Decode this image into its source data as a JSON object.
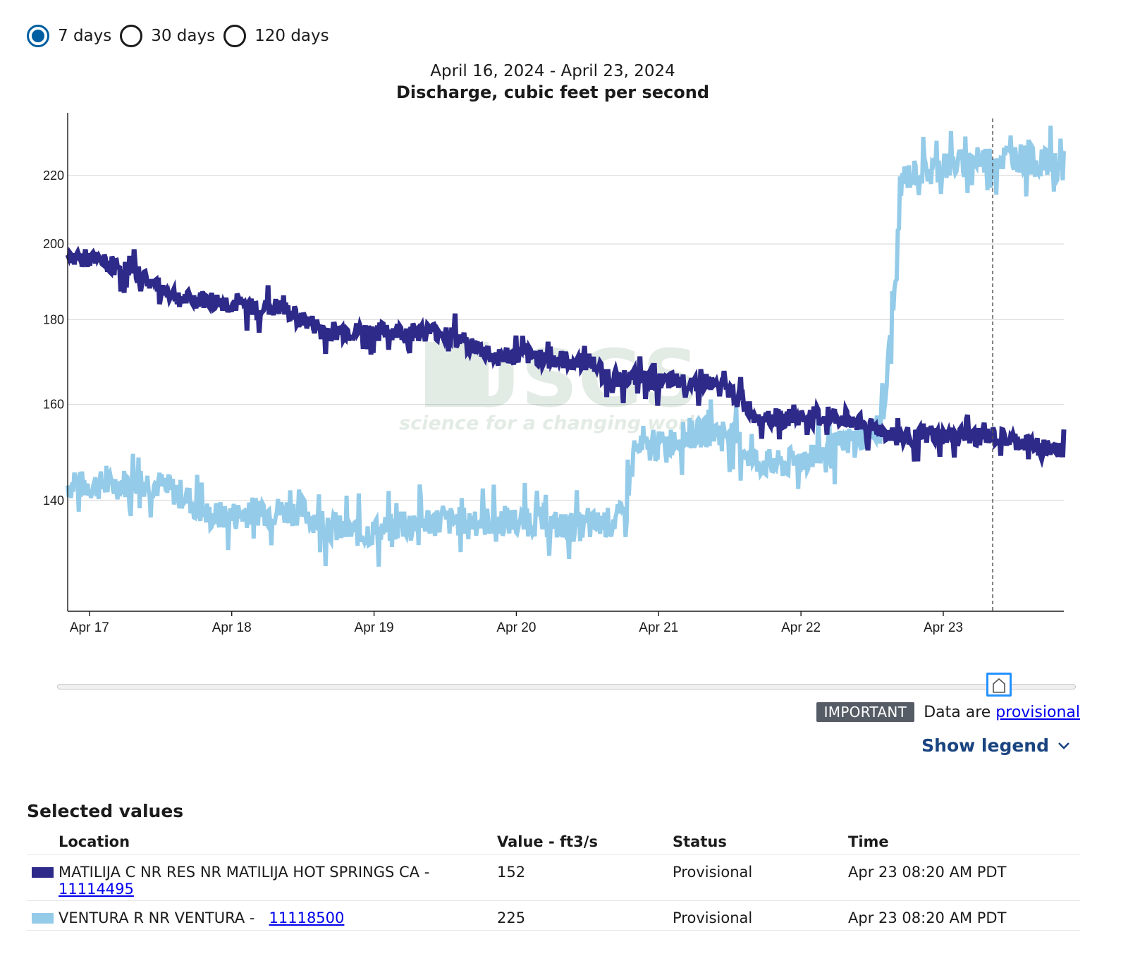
{
  "period_selector": {
    "options": [
      {
        "label": "7 days",
        "checked": true
      },
      {
        "label": "30 days",
        "checked": false
      },
      {
        "label": "120 days",
        "checked": false
      }
    ]
  },
  "watermark": {
    "main": "USGS",
    "tagline": "science for a changing world"
  },
  "chart_data": {
    "type": "line",
    "title": "Discharge, cubic feet per second",
    "subtitle": "April 16, 2024 - April 23, 2024",
    "xlabel": "",
    "ylabel": "",
    "x_range": [
      "2024-04-16T20:20",
      "2024-04-23T20:20"
    ],
    "x_ticks": [
      "Apr 17",
      "Apr 18",
      "Apr 19",
      "Apr 20",
      "Apr 21",
      "Apr 22",
      "Apr 23"
    ],
    "y_ticks": [
      140,
      160,
      180,
      200,
      220
    ],
    "y_scale": "log",
    "ylim": [
      120,
      240
    ],
    "grid": true,
    "cursor_time": "2024-04-23T08:20",
    "colors": {
      "matilija": "#2e2a8a",
      "ventura": "#94cbe9"
    },
    "series": [
      {
        "name": "MATILIJA C NR RES NR MATILIJA HOT SPRINGS CA - 11114495",
        "color": "#2e2a8a",
        "points": [
          [
            "2024-04-16T20:20",
            196
          ],
          [
            "2024-04-17T00:00",
            196
          ],
          [
            "2024-04-17T04:00",
            194
          ],
          [
            "2024-04-17T08:00",
            192
          ],
          [
            "2024-04-17T12:00",
            188
          ],
          [
            "2024-04-17T16:00",
            185
          ],
          [
            "2024-04-17T20:00",
            185
          ],
          [
            "2024-04-18T00:00",
            184
          ],
          [
            "2024-04-18T04:00",
            183
          ],
          [
            "2024-04-18T08:00",
            183
          ],
          [
            "2024-04-18T12:00",
            180
          ],
          [
            "2024-04-18T16:00",
            177
          ],
          [
            "2024-04-18T20:00",
            177
          ],
          [
            "2024-04-19T00:00",
            177
          ],
          [
            "2024-04-19T04:00",
            177
          ],
          [
            "2024-04-19T08:00",
            177
          ],
          [
            "2024-04-19T12:00",
            177
          ],
          [
            "2024-04-19T16:00",
            174
          ],
          [
            "2024-04-19T20:00",
            171
          ],
          [
            "2024-04-20T00:00",
            171
          ],
          [
            "2024-04-20T04:00",
            171
          ],
          [
            "2024-04-20T08:00",
            170
          ],
          [
            "2024-04-20T12:00",
            170
          ],
          [
            "2024-04-20T16:00",
            166
          ],
          [
            "2024-04-20T20:00",
            166
          ],
          [
            "2024-04-21T00:00",
            165
          ],
          [
            "2024-04-21T04:00",
            165
          ],
          [
            "2024-04-21T08:00",
            165
          ],
          [
            "2024-04-21T12:00",
            163
          ],
          [
            "2024-04-21T16:00",
            158
          ],
          [
            "2024-04-21T20:00",
            157
          ],
          [
            "2024-04-22T00:00",
            157
          ],
          [
            "2024-04-22T04:00",
            157
          ],
          [
            "2024-04-22T08:00",
            157
          ],
          [
            "2024-04-22T12:00",
            155
          ],
          [
            "2024-04-22T16:00",
            153
          ],
          [
            "2024-04-22T20:00",
            153
          ],
          [
            "2024-04-23T00:00",
            153
          ],
          [
            "2024-04-23T04:00",
            153
          ],
          [
            "2024-04-23T08:00",
            153
          ],
          [
            "2024-04-23T12:00",
            152
          ],
          [
            "2024-04-23T16:00",
            151
          ],
          [
            "2024-04-23T20:20",
            150
          ]
        ]
      },
      {
        "name": "VENTURA R NR VENTURA - 11118500",
        "color": "#94cbe9",
        "points": [
          [
            "2024-04-16T20:20",
            143
          ],
          [
            "2024-04-17T00:00",
            143
          ],
          [
            "2024-04-17T04:00",
            143
          ],
          [
            "2024-04-17T08:00",
            144
          ],
          [
            "2024-04-17T12:00",
            143
          ],
          [
            "2024-04-17T16:00",
            141
          ],
          [
            "2024-04-17T20:00",
            137
          ],
          [
            "2024-04-18T00:00",
            137
          ],
          [
            "2024-04-18T04:00",
            138
          ],
          [
            "2024-04-18T08:00",
            138
          ],
          [
            "2024-04-18T12:00",
            138
          ],
          [
            "2024-04-18T16:00",
            135
          ],
          [
            "2024-04-18T20:00",
            134
          ],
          [
            "2024-04-19T00:00",
            134
          ],
          [
            "2024-04-19T04:00",
            135
          ],
          [
            "2024-04-19T08:00",
            136
          ],
          [
            "2024-04-19T12:00",
            136
          ],
          [
            "2024-04-19T16:00",
            136
          ],
          [
            "2024-04-19T20:00",
            136
          ],
          [
            "2024-04-20T00:00",
            136
          ],
          [
            "2024-04-20T04:00",
            136
          ],
          [
            "2024-04-20T08:00",
            135
          ],
          [
            "2024-04-20T12:00",
            135
          ],
          [
            "2024-04-20T16:00",
            136
          ],
          [
            "2024-04-20T18:00",
            137
          ],
          [
            "2024-04-20T20:00",
            150
          ],
          [
            "2024-04-21T00:00",
            151
          ],
          [
            "2024-04-21T04:00",
            153
          ],
          [
            "2024-04-21T08:00",
            154
          ],
          [
            "2024-04-21T12:00",
            154
          ],
          [
            "2024-04-21T16:00",
            148
          ],
          [
            "2024-04-21T20:00",
            147
          ],
          [
            "2024-04-22T00:00",
            148
          ],
          [
            "2024-04-22T04:00",
            150
          ],
          [
            "2024-04-22T08:00",
            152
          ],
          [
            "2024-04-22T12:00",
            154
          ],
          [
            "2024-04-22T14:00",
            158
          ],
          [
            "2024-04-22T16:00",
            190
          ],
          [
            "2024-04-22T17:00",
            219
          ],
          [
            "2024-04-22T20:00",
            221
          ],
          [
            "2024-04-23T00:00",
            223
          ],
          [
            "2024-04-23T04:00",
            224
          ],
          [
            "2024-04-23T08:00",
            225
          ],
          [
            "2024-04-23T12:00",
            226
          ],
          [
            "2024-04-23T16:00",
            224
          ],
          [
            "2024-04-23T20:20",
            223
          ]
        ]
      }
    ]
  },
  "notice": {
    "tag": "IMPORTANT",
    "text": "Data are",
    "link": "provisional"
  },
  "legend_toggle": {
    "label": "Show legend"
  },
  "selected_values": {
    "heading": "Selected values",
    "columns": {
      "location": "Location",
      "value": "Value - ft3/s",
      "status": "Status",
      "time": "Time"
    },
    "rows": [
      {
        "location": "MATILIJA C NR RES NR MATILIJA HOT SPRINGS CA -",
        "site": "11114495",
        "value": "152",
        "status": "Provisional",
        "time": "Apr 23 08:20 AM PDT",
        "color": "#2e2a8a"
      },
      {
        "location": "VENTURA R NR VENTURA -",
        "site": "11118500",
        "value": "225",
        "status": "Provisional",
        "time": "Apr 23 08:20 AM PDT",
        "color": "#94cbe9"
      }
    ]
  }
}
